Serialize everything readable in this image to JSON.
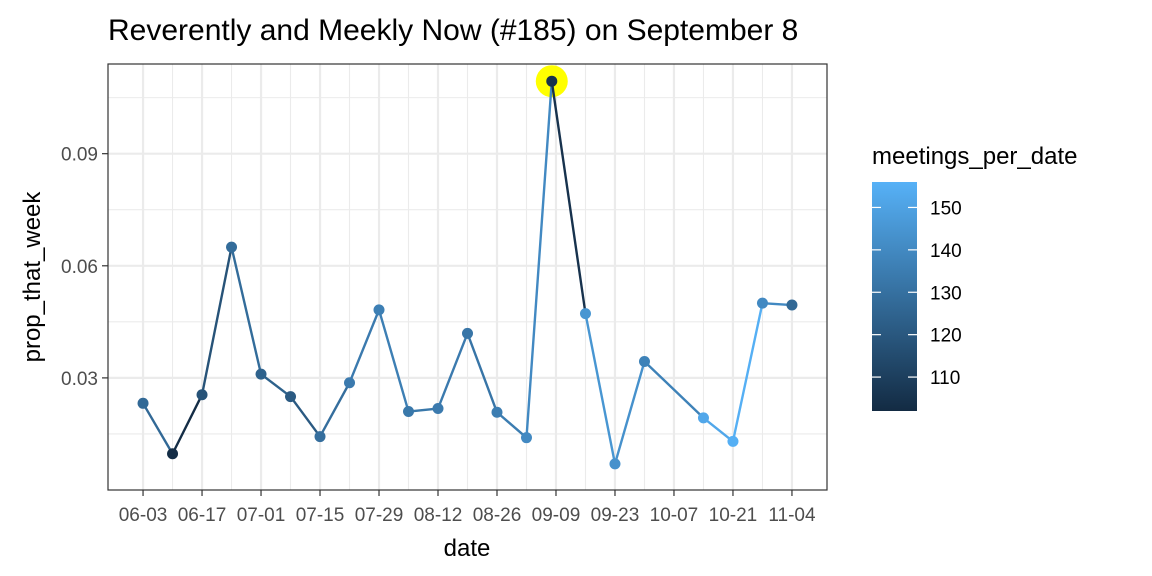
{
  "chart_data": {
    "type": "line",
    "title": "Reverently and Meekly Now (#185) on September 8",
    "xlabel": "date",
    "ylabel": "prop_that_week",
    "ylim": [
      0.0,
      0.114
    ],
    "y_ticks": [
      0.03,
      0.06,
      0.09
    ],
    "y_tick_labels": [
      "0.03",
      "0.06",
      "0.09"
    ],
    "x_tick_labels": [
      "06-03",
      "06-17",
      "07-01",
      "07-15",
      "07-29",
      "08-12",
      "08-26",
      "09-09",
      "09-23",
      "10-07",
      "10-21",
      "11-04"
    ],
    "grid": true,
    "legend": {
      "title": "meetings_per_date",
      "position": "right",
      "type": "colorbar",
      "range": [
        102,
        156
      ],
      "ticks": [
        110,
        120,
        130,
        140,
        150
      ],
      "tick_labels": [
        "110",
        "120",
        "130",
        "140",
        "150"
      ],
      "color_low": "#132B43",
      "color_high": "#56B1F7"
    },
    "highlight": {
      "x": "09-08",
      "color": "#ffff00"
    },
    "points": [
      {
        "x": "06-03",
        "y": 0.0232,
        "meetings_per_date": 127
      },
      {
        "x": "06-10",
        "y": 0.0097,
        "meetings_per_date": 103
      },
      {
        "x": "06-17",
        "y": 0.0255,
        "meetings_per_date": 118
      },
      {
        "x": "06-24",
        "y": 0.065,
        "meetings_per_date": 128
      },
      {
        "x": "07-01",
        "y": 0.031,
        "meetings_per_date": 124
      },
      {
        "x": "07-08",
        "y": 0.025,
        "meetings_per_date": 121
      },
      {
        "x": "07-15",
        "y": 0.0143,
        "meetings_per_date": 129
      },
      {
        "x": "07-22",
        "y": 0.0287,
        "meetings_per_date": 134
      },
      {
        "x": "07-29",
        "y": 0.0482,
        "meetings_per_date": 136
      },
      {
        "x": "08-05",
        "y": 0.021,
        "meetings_per_date": 133
      },
      {
        "x": "08-12",
        "y": 0.0218,
        "meetings_per_date": 134
      },
      {
        "x": "08-19",
        "y": 0.0419,
        "meetings_per_date": 132
      },
      {
        "x": "08-26",
        "y": 0.0208,
        "meetings_per_date": 135
      },
      {
        "x": "09-02",
        "y": 0.014,
        "meetings_per_date": 140
      },
      {
        "x": "09-08",
        "y": 0.1094,
        "meetings_per_date": 105
      },
      {
        "x": "09-16",
        "y": 0.0472,
        "meetings_per_date": 145
      },
      {
        "x": "09-23",
        "y": 0.007,
        "meetings_per_date": 143
      },
      {
        "x": "09-30",
        "y": 0.0344,
        "meetings_per_date": 137
      },
      {
        "x": "10-14",
        "y": 0.0193,
        "meetings_per_date": 152
      },
      {
        "x": "10-21",
        "y": 0.013,
        "meetings_per_date": 155
      },
      {
        "x": "10-28",
        "y": 0.05,
        "meetings_per_date": 140
      },
      {
        "x": "11-04",
        "y": 0.0495,
        "meetings_per_date": 127
      }
    ]
  }
}
